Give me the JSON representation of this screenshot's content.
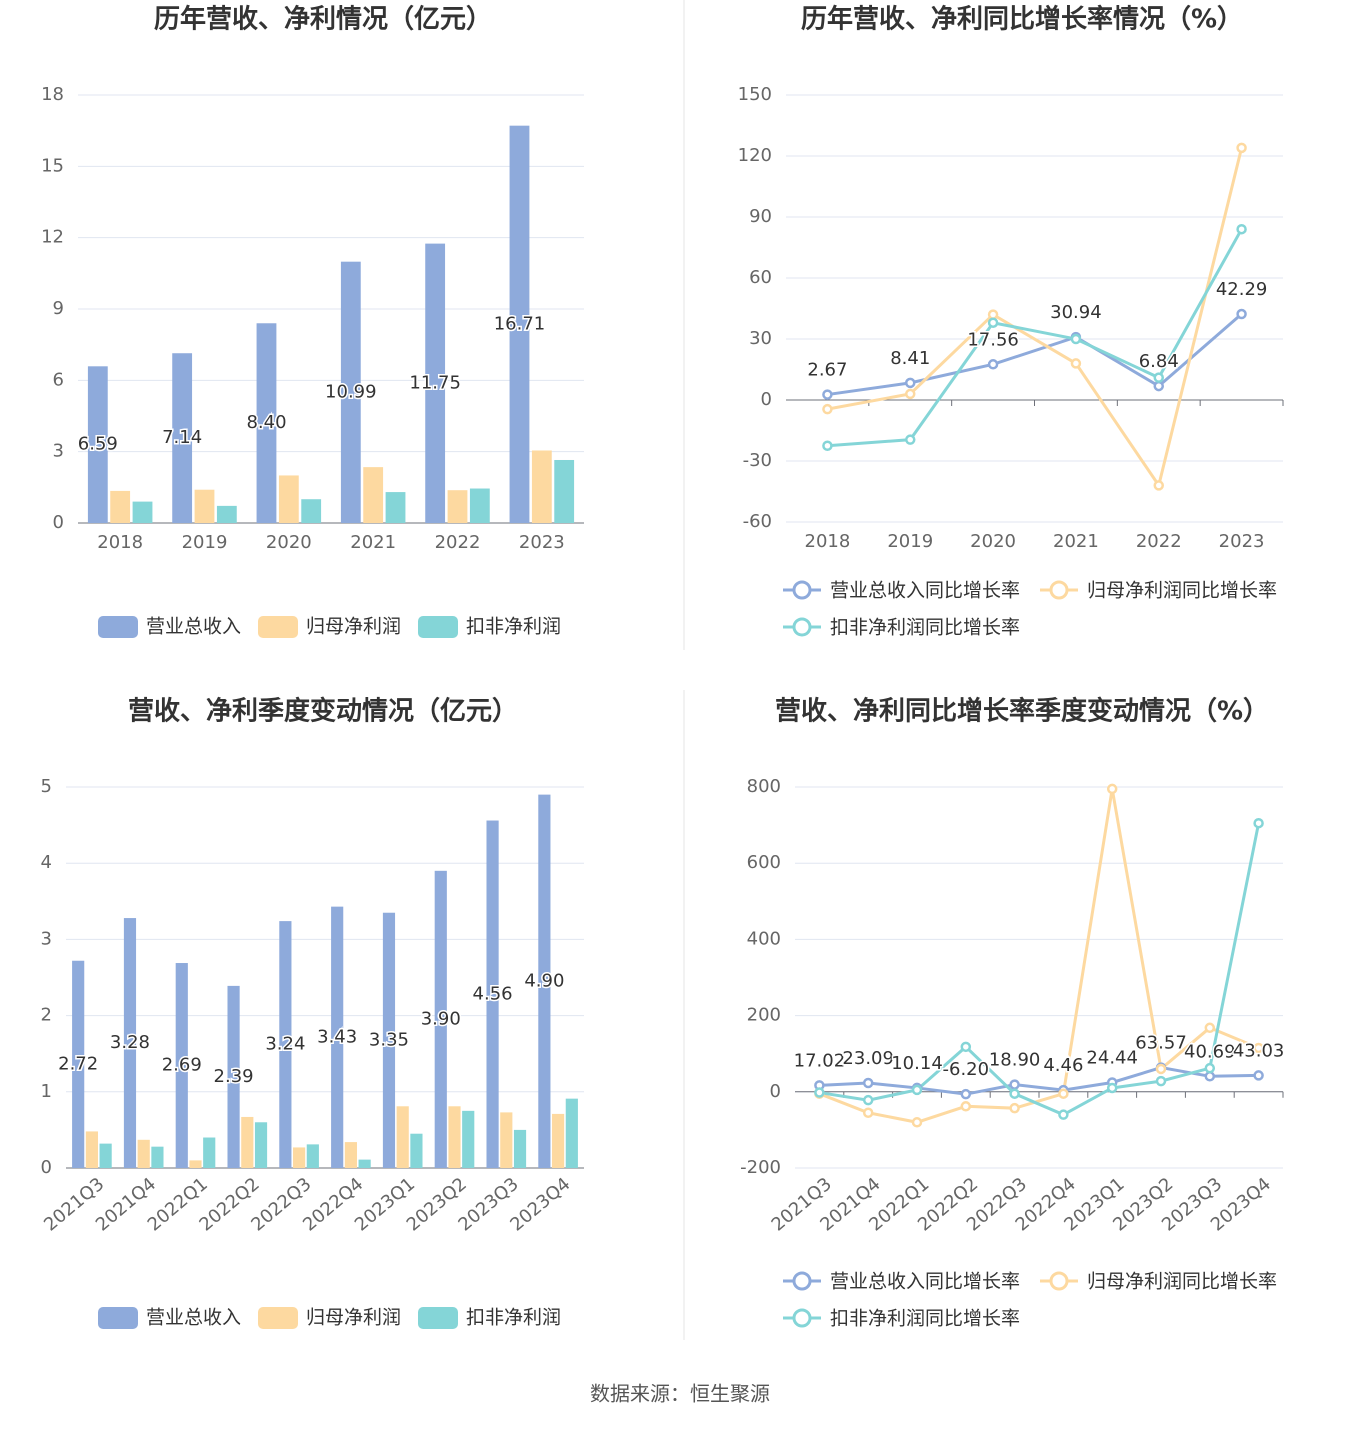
{
  "chart_data": [
    {
      "type": "bar",
      "title": "历年营收、净利情况（亿元）",
      "categories": [
        "2018",
        "2019",
        "2020",
        "2021",
        "2022",
        "2023"
      ],
      "series": [
        {
          "name": "营业总收入",
          "color": "#8eaadb",
          "values": [
            6.59,
            7.14,
            8.4,
            10.99,
            11.75,
            16.71
          ],
          "value_labels": [
            "6.59",
            "7.14",
            "8.40",
            "10.99",
            "11.75",
            "16.71"
          ]
        },
        {
          "name": "归母净利润",
          "color": "#fdd9a0",
          "values": [
            1.35,
            1.4,
            2.0,
            2.35,
            1.38,
            3.05
          ]
        },
        {
          "name": "扣非净利润",
          "color": "#84d5d7",
          "values": [
            0.9,
            0.72,
            1.0,
            1.3,
            1.45,
            2.65
          ]
        }
      ],
      "ylim": [
        0,
        18
      ],
      "yticks": [
        0,
        3,
        6,
        9,
        12,
        15,
        18
      ],
      "grid": true,
      "legend": "bottom"
    },
    {
      "type": "line",
      "title": "历年营收、净利同比增长率情况（%）",
      "categories": [
        "2018",
        "2019",
        "2020",
        "2021",
        "2022",
        "2023"
      ],
      "series": [
        {
          "name": "营业总收入同比增长率",
          "color": "#8eaadb",
          "values": [
            2.67,
            8.41,
            17.56,
            30.94,
            6.84,
            42.29
          ]
        },
        {
          "name": "归母净利润同比增长率",
          "color": "#fdd9a0",
          "values": [
            -4.5,
            3,
            42,
            18,
            -42,
            124
          ]
        },
        {
          "name": "扣非净利润同比增长率",
          "color": "#84d5d7",
          "values": [
            -22.5,
            -19.5,
            38,
            30,
            11,
            84
          ]
        }
      ],
      "ylim": [
        -60,
        150
      ],
      "yticks": [
        -60,
        -30,
        0,
        30,
        60,
        90,
        120,
        150
      ],
      "grid": true,
      "legend": "bottom"
    },
    {
      "type": "bar",
      "title": "营收、净利季度变动情况（亿元）",
      "categories": [
        "2021Q3",
        "2021Q4",
        "2022Q1",
        "2022Q2",
        "2022Q3",
        "2022Q4",
        "2023Q1",
        "2023Q2",
        "2023Q3",
        "2023Q4"
      ],
      "series": [
        {
          "name": "营业总收入",
          "color": "#8eaadb",
          "values": [
            2.72,
            3.28,
            2.69,
            2.39,
            3.24,
            3.43,
            3.35,
            3.9,
            4.56,
            4.9
          ],
          "value_labels": [
            "2.72",
            "3.28",
            "2.69",
            "2.39",
            "3.24",
            "3.43",
            "3.35",
            "3.90",
            "4.56",
            "4.90"
          ]
        },
        {
          "name": "归母净利润",
          "color": "#fdd9a0",
          "values": [
            0.48,
            0.37,
            0.1,
            0.67,
            0.27,
            0.34,
            0.81,
            0.81,
            0.73,
            0.71
          ]
        },
        {
          "name": "扣非净利润",
          "color": "#84d5d7",
          "values": [
            0.32,
            0.28,
            0.4,
            0.6,
            0.31,
            0.11,
            0.45,
            0.75,
            0.5,
            0.91
          ]
        }
      ],
      "ylim": [
        0,
        5
      ],
      "yticks": [
        0,
        1,
        2,
        3,
        4,
        5
      ],
      "grid": true,
      "legend": "bottom"
    },
    {
      "type": "line",
      "title": "营收、净利同比增长率季度变动情况（%）",
      "categories": [
        "2021Q3",
        "2021Q4",
        "2022Q1",
        "2022Q2",
        "2022Q3",
        "2022Q4",
        "2023Q1",
        "2023Q2",
        "2023Q3",
        "2023Q4"
      ],
      "series": [
        {
          "name": "营业总收入同比增长率",
          "color": "#8eaadb",
          "values": [
            17.02,
            23.09,
            10.14,
            -6.2,
            18.9,
            4.46,
            24.44,
            63.57,
            40.69,
            43.03
          ],
          "value_labels": [
            "17.02",
            "23.09",
            "10.14",
            "-6.20",
            "18.90",
            "4.46",
            "24.44",
            "63.57",
            "40.69",
            "43.03"
          ]
        },
        {
          "name": "归母净利润同比增长率",
          "color": "#fdd9a0",
          "values": [
            -5,
            -55,
            -80,
            -38,
            -43,
            -5,
            795,
            60,
            168,
            115
          ]
        },
        {
          "name": "扣非净利润同比增长率",
          "color": "#84d5d7",
          "values": [
            -2,
            -22,
            5,
            118,
            -5,
            -60,
            10,
            28,
            62,
            705
          ]
        }
      ],
      "ylim": [
        -200,
        800
      ],
      "yticks": [
        -200,
        0,
        200,
        400,
        600,
        800
      ],
      "grid": true,
      "legend": "bottom"
    }
  ],
  "source": "数据来源：恒生聚源"
}
